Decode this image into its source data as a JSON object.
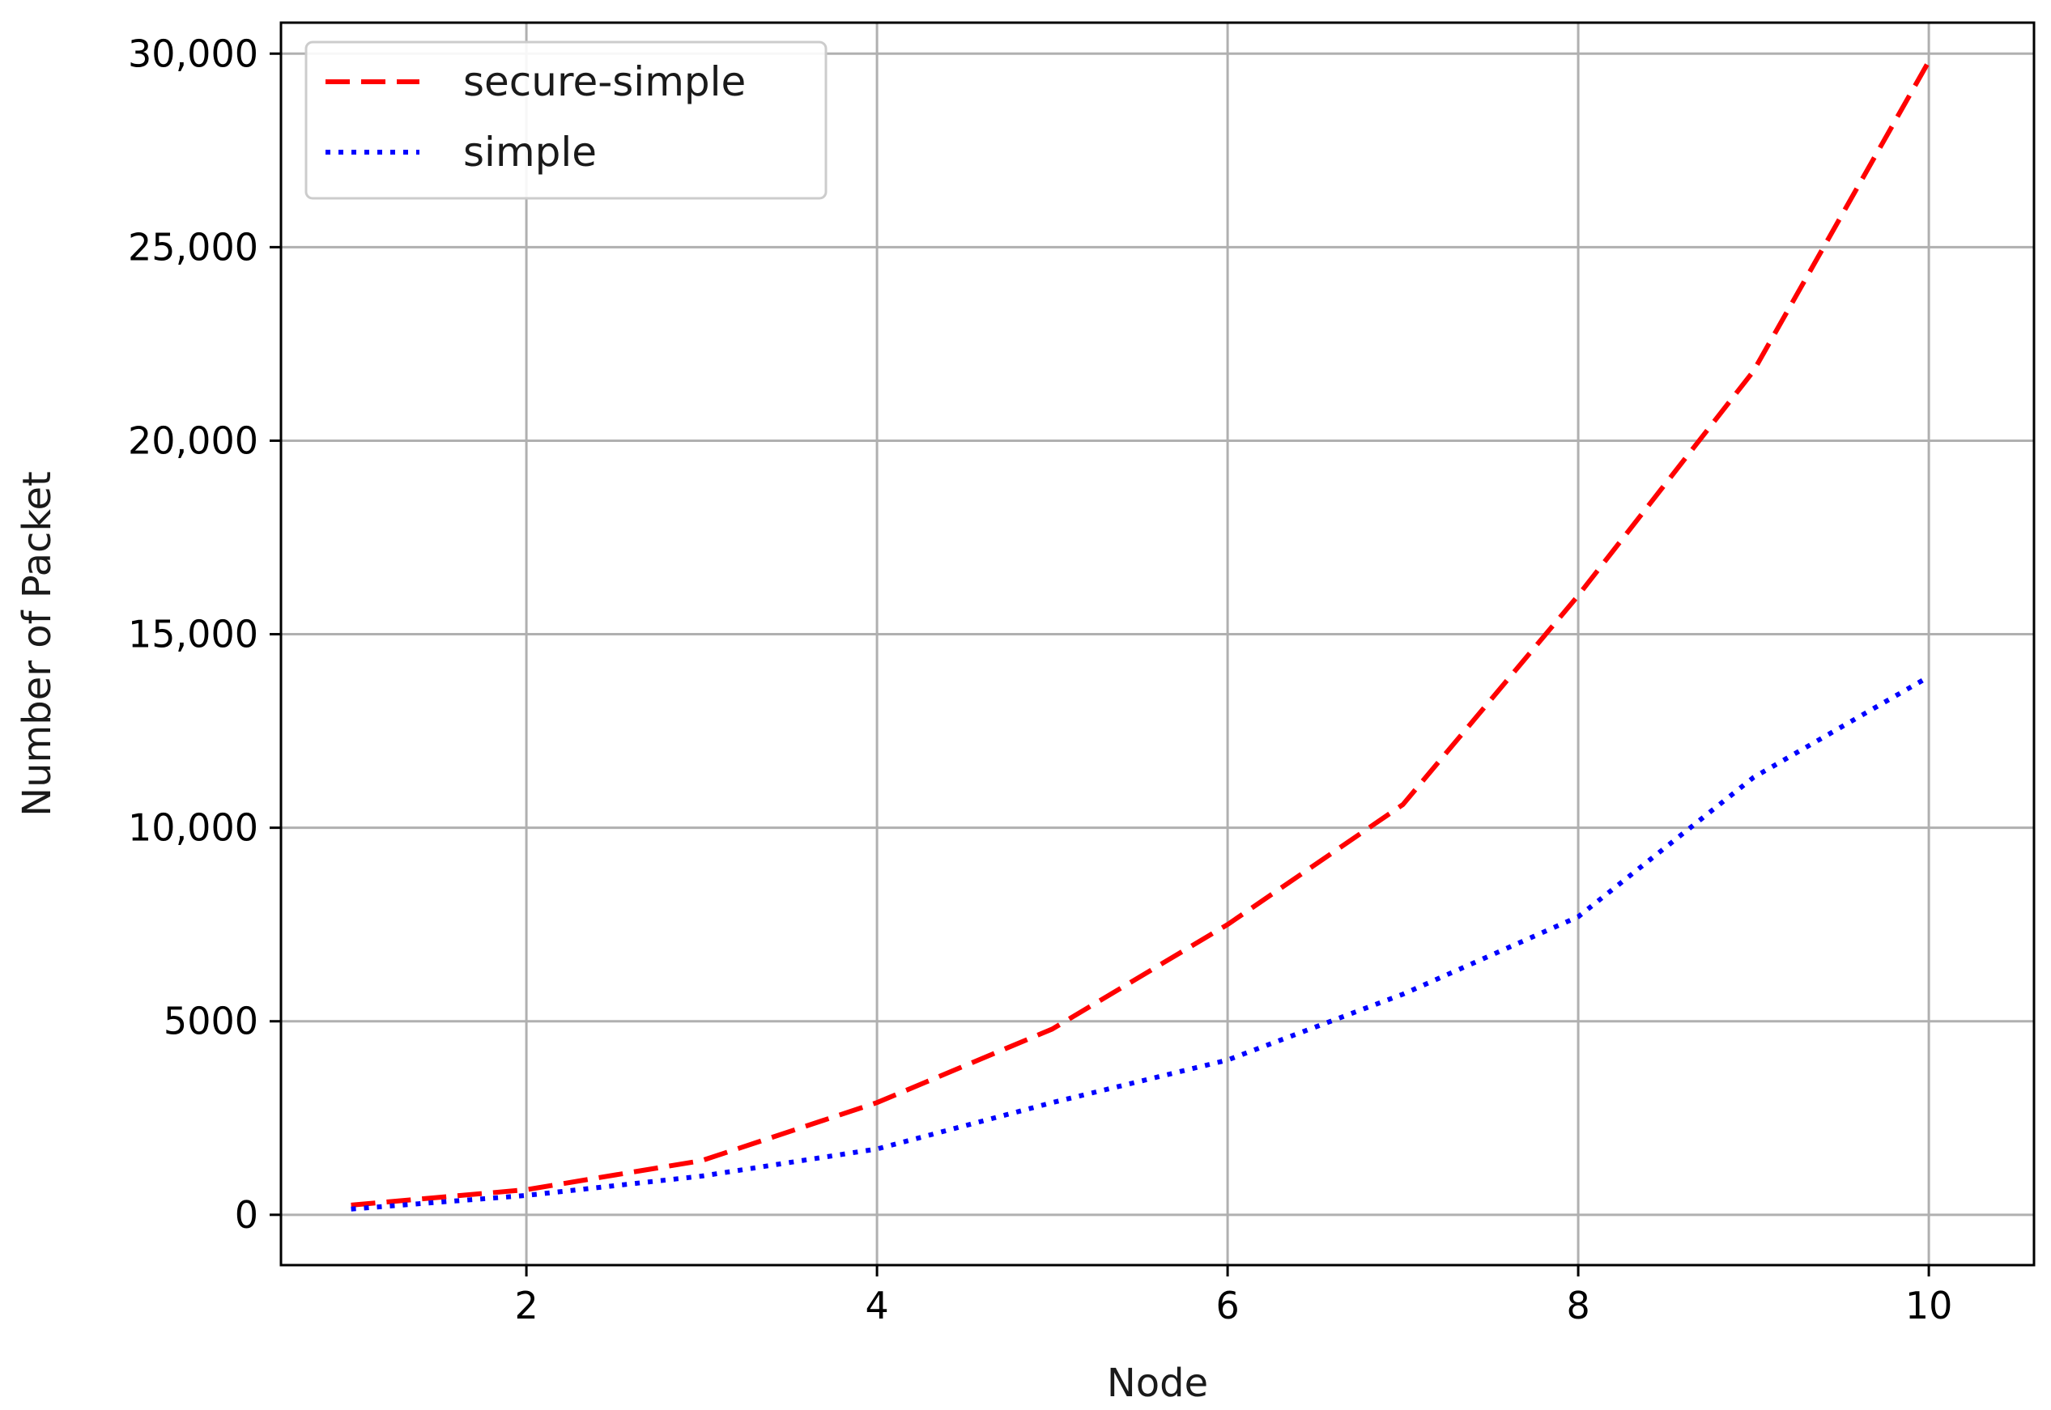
{
  "chart_data": {
    "type": "line",
    "title": "",
    "xlabel": "Node",
    "ylabel": "Number of Packet",
    "xlim": [
      0.6,
      10.6
    ],
    "ylim": [
      -1300,
      30800
    ],
    "grid": true,
    "legend_position": "top-left",
    "x_ticks": [
      2,
      4,
      6,
      8,
      10
    ],
    "x_tick_labels": [
      "2",
      "4",
      "6",
      "8",
      "10"
    ],
    "y_ticks": [
      0,
      5000,
      10000,
      15000,
      20000,
      25000,
      30000
    ],
    "y_tick_labels": [
      "0",
      "5000",
      "10,000",
      "15,000",
      "20,000",
      "25,000",
      "30,000"
    ],
    "x": [
      1,
      2,
      3,
      4,
      5,
      6,
      7,
      8,
      9,
      10
    ],
    "series": [
      {
        "name": "secure-simple",
        "color": "#ff0000",
        "style": "dashed",
        "values": [
          250,
          650,
          1400,
          2900,
          4800,
          7500,
          10600,
          16000,
          21800,
          29800
        ]
      },
      {
        "name": "simple",
        "color": "#0000ff",
        "style": "dotted",
        "values": [
          150,
          500,
          1000,
          1700,
          2900,
          4000,
          5700,
          7700,
          11300,
          13900
        ]
      }
    ]
  }
}
